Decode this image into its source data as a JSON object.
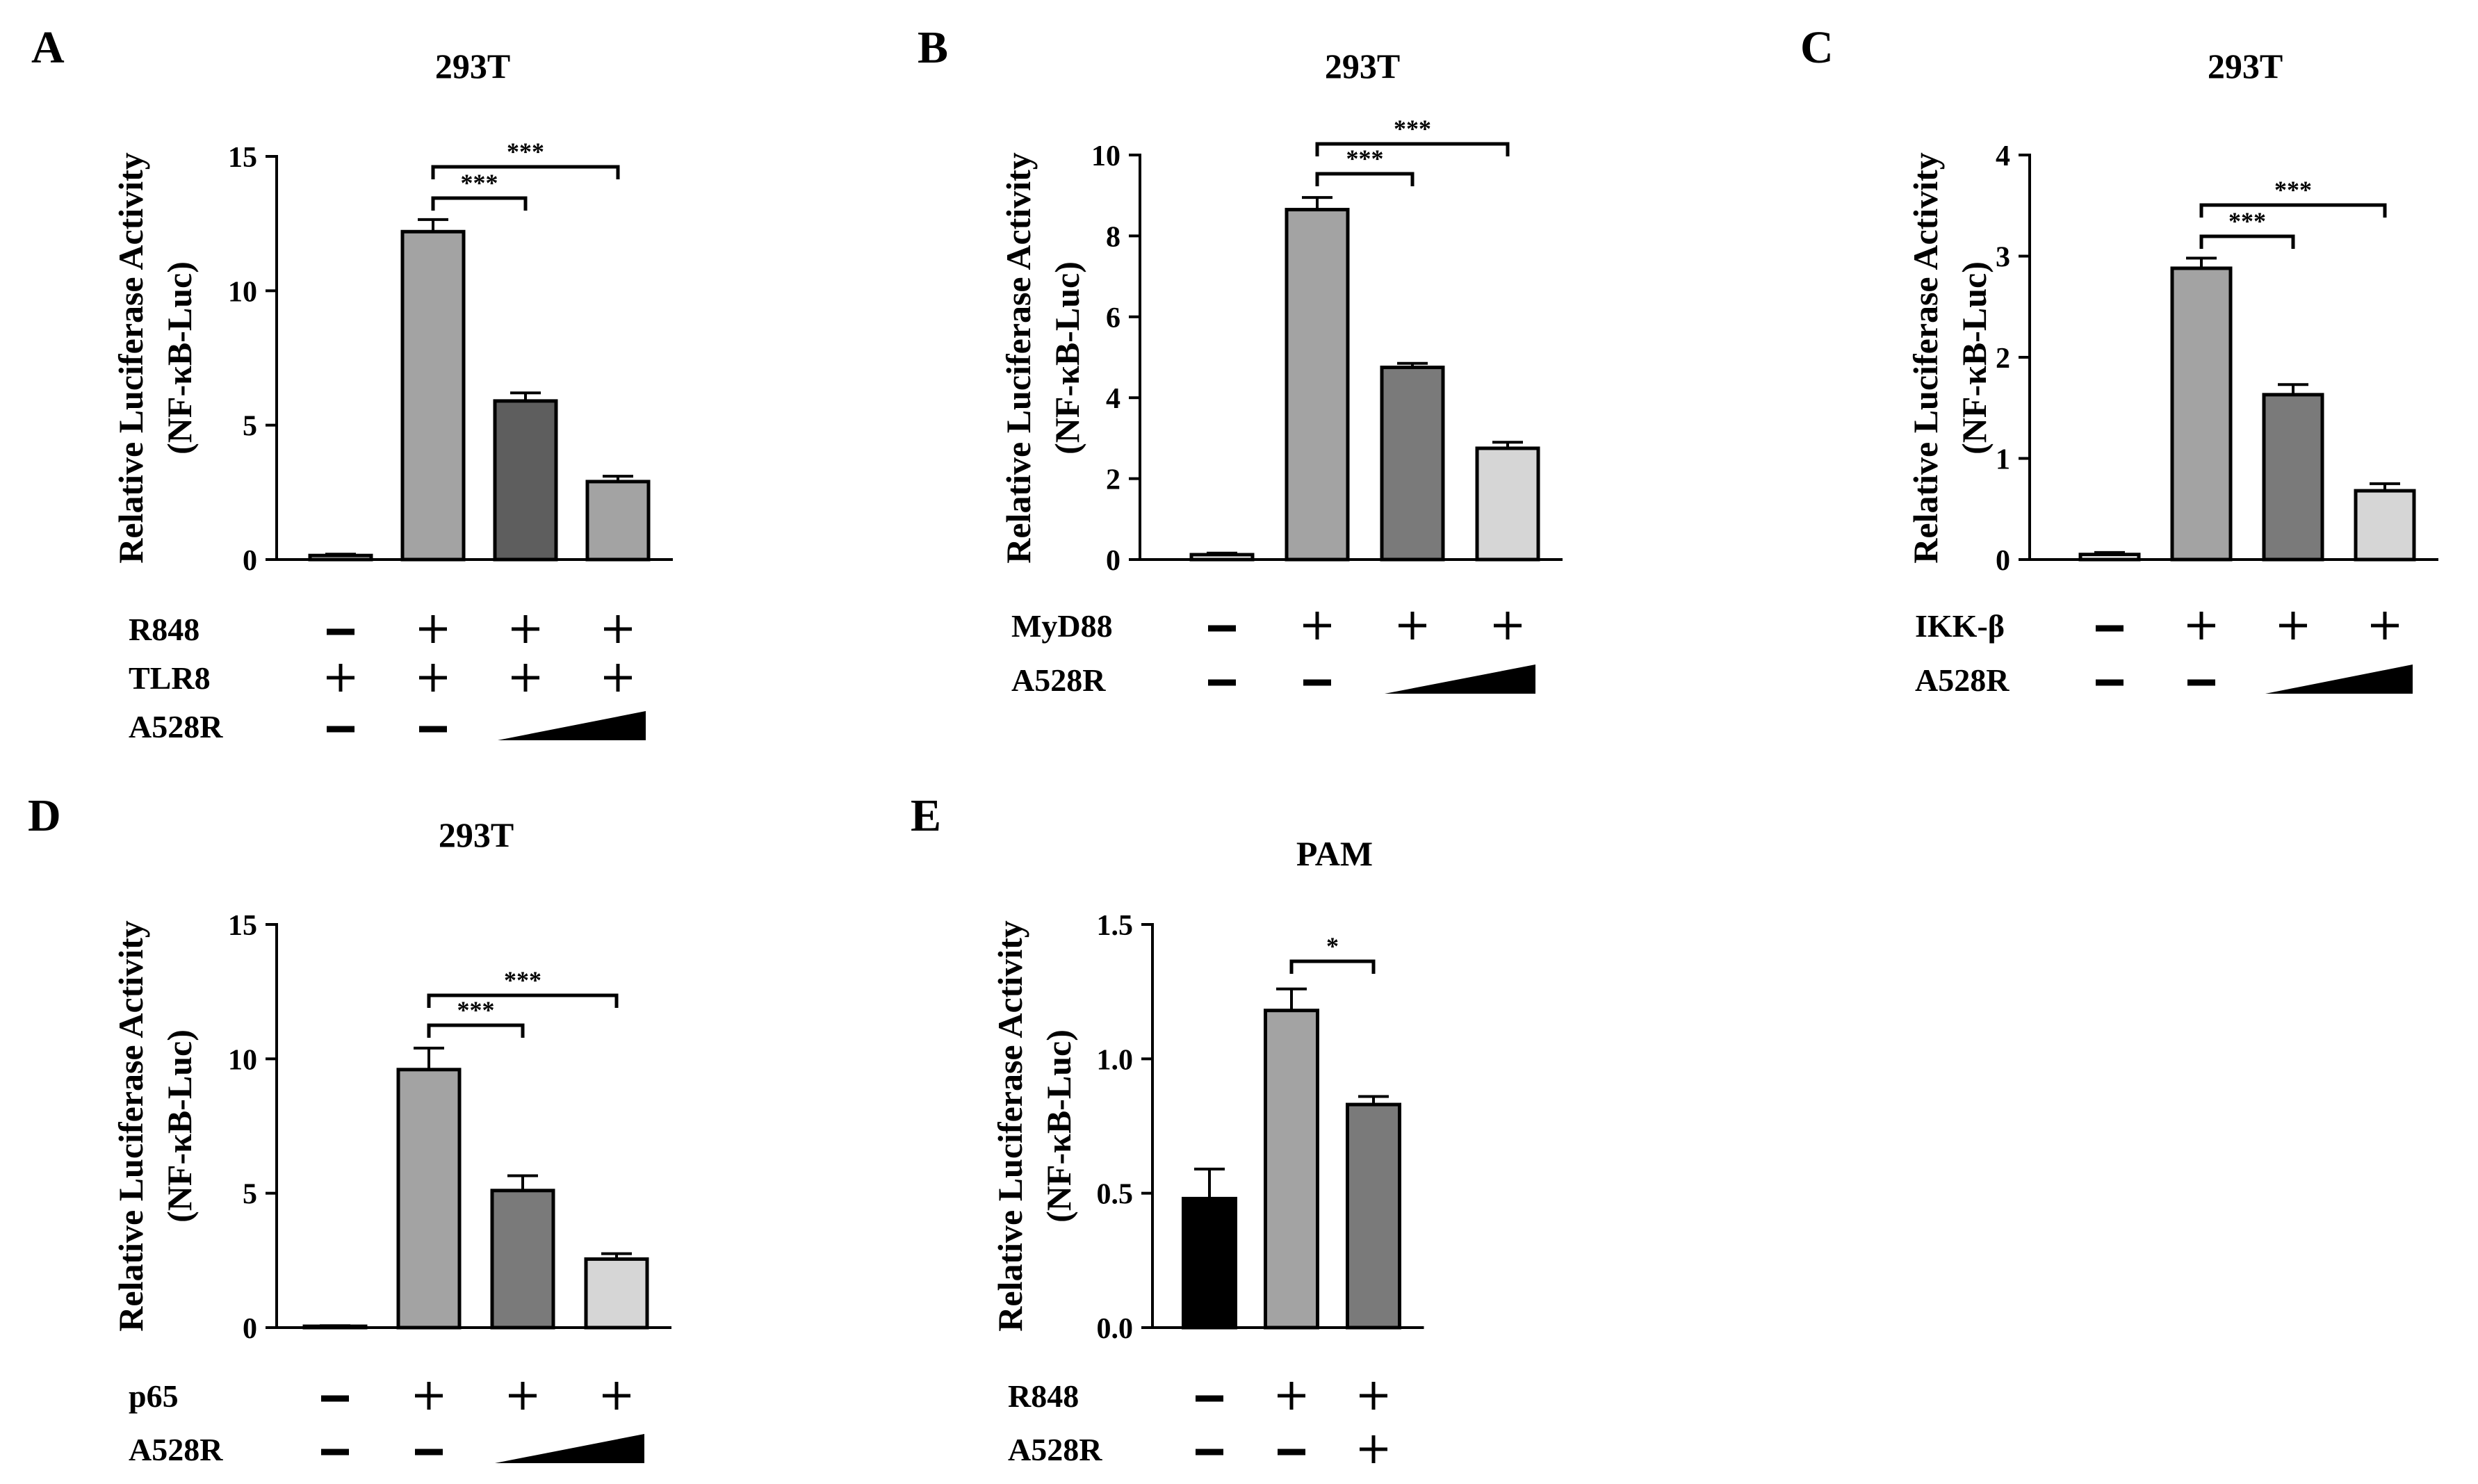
{
  "figure_title": "",
  "y_label_line1": "Relative Luciferase Activity",
  "y_label_line2": "(NF-κB-Luc)",
  "chart_data": [
    {
      "panel": "A",
      "type": "bar",
      "title": "293T",
      "ylabel": "Relative Luciferase Activity (NF-κB-Luc)",
      "ylim": [
        0,
        15
      ],
      "yticks": [
        "0",
        "5",
        "10",
        "15"
      ],
      "values": [
        0.15,
        12.2,
        5.9,
        2.9
      ],
      "errors": [
        0.05,
        0.45,
        0.3,
        0.2
      ],
      "colors": [
        "#ffffff",
        "#a3a3a3",
        "#5e5e5e",
        "#a3a3a3"
      ],
      "conditions": [
        {
          "label": "R848",
          "marks": [
            "−",
            "+",
            "+",
            "+"
          ]
        },
        {
          "label": "TLR8",
          "marks": [
            "+",
            "+",
            "+",
            "+"
          ]
        },
        {
          "label": "A528R",
          "marks": [
            "−",
            "−",
            "ramp",
            "ramp"
          ]
        }
      ],
      "significance": [
        {
          "from": 1,
          "to": 2,
          "label": "***"
        },
        {
          "from": 1,
          "to": 3,
          "label": "***"
        }
      ]
    },
    {
      "panel": "B",
      "type": "bar",
      "title": "293T",
      "ylabel": "Relative Luciferase Activity (NF-κB-Luc)",
      "ylim": [
        0,
        10
      ],
      "yticks": [
        "0",
        "2",
        "4",
        "6",
        "8",
        "10"
      ],
      "values": [
        0.12,
        8.65,
        4.75,
        2.75
      ],
      "errors": [
        0.04,
        0.3,
        0.1,
        0.15
      ],
      "colors": [
        "#ffffff",
        "#a3a3a3",
        "#7a7a7a",
        "#d6d6d6"
      ],
      "conditions": [
        {
          "label": "MyD88",
          "marks": [
            "−",
            "+",
            "+",
            "+"
          ]
        },
        {
          "label": "A528R",
          "marks": [
            "−",
            "−",
            "ramp",
            "ramp"
          ]
        }
      ],
      "significance": [
        {
          "from": 1,
          "to": 2,
          "label": "***"
        },
        {
          "from": 1,
          "to": 3,
          "label": "***"
        }
      ]
    },
    {
      "panel": "C",
      "type": "bar",
      "title": "293T",
      "ylabel": "Relative Luciferase Activity (NF-κB-Luc)",
      "ylim": [
        0,
        4
      ],
      "yticks": [
        "0",
        "1",
        "2",
        "3",
        "4"
      ],
      "values": [
        0.05,
        2.88,
        1.63,
        0.68
      ],
      "errors": [
        0.02,
        0.1,
        0.1,
        0.07
      ],
      "colors": [
        "#ffffff",
        "#a3a3a3",
        "#7a7a7a",
        "#d6d6d6"
      ],
      "conditions": [
        {
          "label": "IKK-β",
          "marks": [
            "−",
            "+",
            "+",
            "+"
          ]
        },
        {
          "label": "A528R",
          "marks": [
            "−",
            "−",
            "ramp",
            "ramp"
          ]
        }
      ],
      "significance": [
        {
          "from": 1,
          "to": 2,
          "label": "***"
        },
        {
          "from": 1,
          "to": 3,
          "label": "***"
        }
      ]
    },
    {
      "panel": "D",
      "type": "bar",
      "title": "293T",
      "ylabel": "Relative Luciferase Activity (NF-κB-Luc)",
      "ylim": [
        0,
        15
      ],
      "yticks": [
        "0",
        "5",
        "10",
        "15"
      ],
      "values": [
        0.05,
        9.6,
        5.1,
        2.55
      ],
      "errors": [
        0.02,
        0.8,
        0.55,
        0.2
      ],
      "colors": [
        "#ffffff",
        "#a3a3a3",
        "#7a7a7a",
        "#d6d6d6"
      ],
      "conditions": [
        {
          "label": "p65",
          "marks": [
            "−",
            "+",
            "+",
            "+"
          ]
        },
        {
          "label": "A528R",
          "marks": [
            "−",
            "−",
            "ramp",
            "ramp"
          ]
        }
      ],
      "significance": [
        {
          "from": 1,
          "to": 2,
          "label": "***"
        },
        {
          "from": 1,
          "to": 3,
          "label": "***"
        }
      ]
    },
    {
      "panel": "E",
      "type": "bar",
      "title": "PAM",
      "ylabel": "Relative Luciferase Activity (NF-κB-Luc)",
      "ylim": [
        0,
        1.5
      ],
      "yticks": [
        "0.0",
        "0.5",
        "1.0",
        "1.5"
      ],
      "values": [
        0.48,
        1.18,
        0.83
      ],
      "errors": [
        0.11,
        0.08,
        0.03
      ],
      "colors": [
        "#000000",
        "#a3a3a3",
        "#7a7a7a"
      ],
      "conditions": [
        {
          "label": "R848",
          "marks": [
            "−",
            "+",
            "+"
          ]
        },
        {
          "label": "A528R",
          "marks": [
            "−",
            "−",
            "+"
          ]
        }
      ],
      "significance": [
        {
          "from": 1,
          "to": 2,
          "label": "*"
        }
      ]
    }
  ]
}
